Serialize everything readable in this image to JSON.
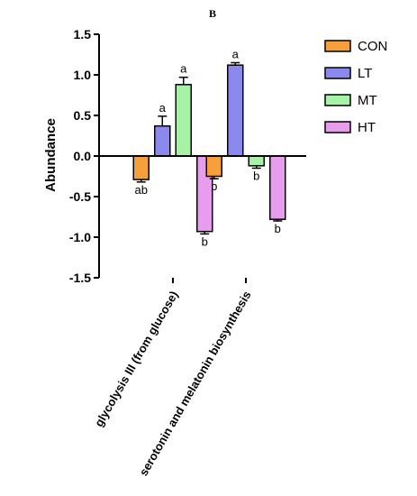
{
  "panel_label": "B",
  "chart_data": {
    "type": "bar",
    "ylabel": "Abundance",
    "ylim": [
      -1.5,
      1.5
    ],
    "yticks": [
      "1.5",
      "1.0",
      "0.5",
      "0.0",
      "-0.5",
      "-1.0",
      "-1.5"
    ],
    "yticks_values": [
      1.5,
      1.0,
      0.5,
      0.0,
      -0.5,
      -1.0,
      -1.5
    ],
    "categories": [
      "glycolysis III (from glucose)",
      "serotonin and melatonin biosynthesis"
    ],
    "legend_position": "right",
    "series": [
      {
        "name": "CON",
        "color": "#f5a03c",
        "values": [
          -0.29,
          -0.25
        ],
        "errors": [
          0.03,
          0.03
        ],
        "labels": [
          "ab",
          "b"
        ]
      },
      {
        "name": "LT",
        "color": "#8a8aee",
        "values": [
          0.37,
          1.12
        ],
        "errors": [
          0.12,
          0.03
        ],
        "labels": [
          "a",
          "a"
        ]
      },
      {
        "name": "MT",
        "color": "#a6f2a6",
        "values": [
          0.88,
          -0.12
        ],
        "errors": [
          0.09,
          0.03
        ],
        "labels": [
          "a",
          "b"
        ]
      },
      {
        "name": "HT",
        "color": "#e89cee",
        "values": [
          -0.93,
          -0.78
        ],
        "errors": [
          0.03,
          0.02
        ],
        "labels": [
          "b",
          "b"
        ]
      }
    ]
  }
}
